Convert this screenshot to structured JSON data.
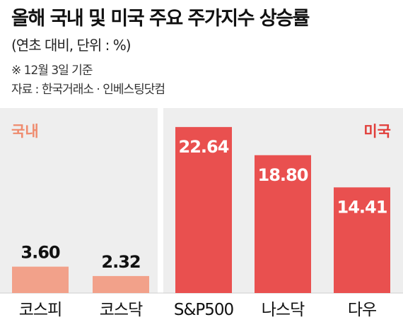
{
  "title": "올해 국내 및 미국 주요 주가지수 상승률",
  "subtitle": "(연초 대비, 단위 : %)",
  "notes": [
    "※ 12월 3일 기준",
    "자료 : 한국거래소 · 인베스팅닷컴"
  ],
  "colors": {
    "panel_bg": "#eeeeee",
    "domestic_bar": "#f2a18a",
    "domestic_label": "#ef8b6e",
    "us_bar": "#e9504f",
    "us_label": "#e13e3a",
    "bar_value_on_dark": "#ffffff",
    "bar_value_on_light": "#111111"
  },
  "chart_data": {
    "type": "bar",
    "groups": [
      "국내",
      "미국"
    ],
    "categories": [
      "코스피",
      "코스닥",
      "S&P500",
      "나스닥",
      "다우"
    ],
    "group_of_category": [
      "국내",
      "국내",
      "미국",
      "미국",
      "미국"
    ],
    "values": [
      3.6,
      2.32,
      22.64,
      18.8,
      14.41
    ],
    "value_labels": [
      "3.60",
      "2.32",
      "22.64",
      "18.80",
      "14.41"
    ],
    "unit": "%",
    "ylim": [
      0,
      26
    ]
  }
}
